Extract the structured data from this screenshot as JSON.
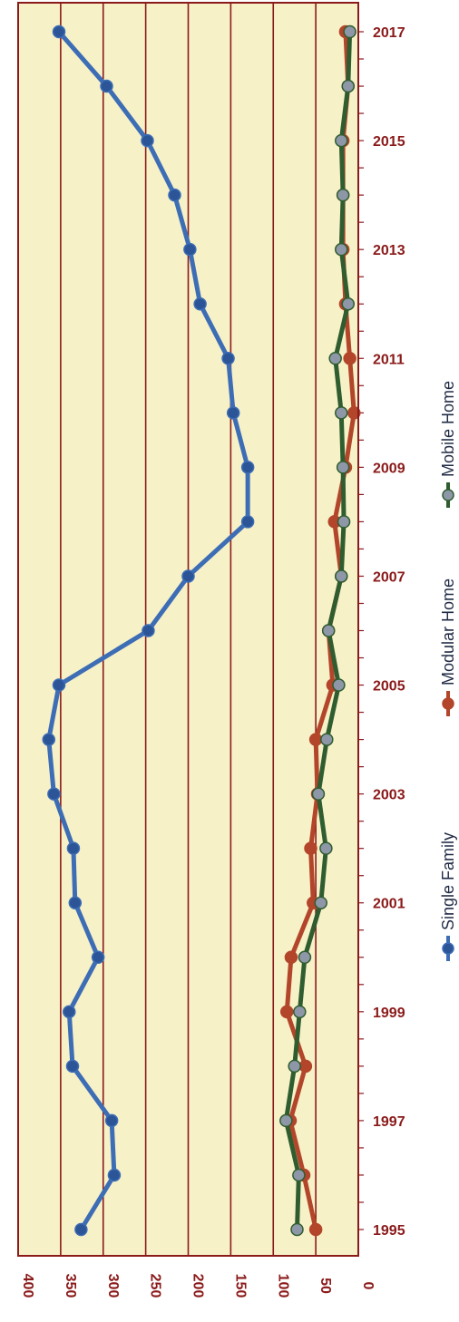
{
  "chart_data": {
    "type": "line",
    "orientation": "rotated-90-clockwise",
    "title": "",
    "xlabel": "",
    "ylabel": "",
    "grid": true,
    "legend_position": "right",
    "colors": {
      "plot_background": "#f7f1c8",
      "gridline": "#8b1a1a",
      "frame": "#8b1a1a",
      "axis_tick_label": "#8b1a1a",
      "value_tick_label": "#8b1a1a"
    },
    "x": [
      1995,
      1996,
      1997,
      1998,
      1999,
      2000,
      2001,
      2002,
      2003,
      2004,
      2005,
      2006,
      2007,
      2008,
      2009,
      2010,
      2011,
      2012,
      2013,
      2014,
      2015,
      2016,
      2017
    ],
    "x_tick_labels": [
      "1995",
      "1997",
      "1999",
      "2001",
      "2003",
      "2005",
      "2007",
      "2009",
      "2011",
      "2013",
      "2015",
      "2017"
    ],
    "y_tick_labels": [
      "0",
      "50",
      "100",
      "150",
      "200",
      "250",
      "300",
      "350",
      "400"
    ],
    "ylim": [
      0,
      400
    ],
    "series": [
      {
        "name": "Single Family",
        "color": "#3d6db5",
        "marker_color": "#2b5597",
        "values": [
          326,
          287,
          290,
          336,
          340,
          306,
          333,
          335,
          358,
          364,
          352,
          247,
          200,
          130,
          130,
          147,
          153,
          186,
          198,
          216,
          248,
          296,
          352
        ]
      },
      {
        "name": "Modular Home",
        "color": "#b2452a",
        "marker_color": "#b2452a",
        "values": [
          50,
          64,
          80,
          62,
          84,
          79,
          53,
          56,
          48,
          50,
          30,
          35,
          20,
          28,
          15,
          5,
          10,
          15,
          18,
          18,
          18,
          12,
          15
        ]
      },
      {
        "name": "Mobile Home",
        "color": "#2f5d2f",
        "marker_color": "#8d97a8",
        "values": [
          72,
          70,
          85,
          75,
          69,
          63,
          44,
          38,
          47,
          37,
          23,
          35,
          20,
          17,
          18,
          20,
          27,
          12,
          20,
          18,
          20,
          12,
          10
        ]
      }
    ]
  }
}
